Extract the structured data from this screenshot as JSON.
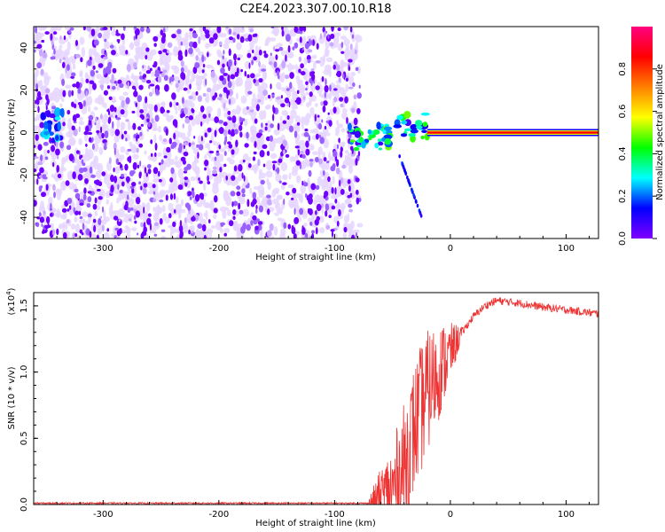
{
  "title": "C2E4.2023.307.00.10.R18",
  "colors": {
    "spectrum_light": "#e6d6ff",
    "spectrum_dark": "#7000ff",
    "snr_line": "#ee3333",
    "colormap": [
      "#8000ff",
      "#0000ff",
      "#00ffff",
      "#00ff00",
      "#ffff00",
      "#ff8000",
      "#ff0000",
      "#ff0080"
    ]
  },
  "chart_data": [
    {
      "type": "heatmap",
      "name": "spectrogram",
      "xlabel": "Height of straight line (km)",
      "ylabel": "Frequency (Hz)",
      "xlim": [
        -360,
        128
      ],
      "ylim": [
        -50,
        50
      ],
      "xticks": [
        -300,
        -200,
        -100,
        0,
        100
      ],
      "xtick_labels": [
        "-300",
        "-200",
        "-100",
        "0",
        "100"
      ],
      "yticks": [
        -40,
        -20,
        0,
        20,
        40
      ],
      "ytick_labels": [
        "-40",
        "-20",
        "0",
        "20",
        "40"
      ],
      "noise_region_x": [
        -360,
        -78
      ],
      "strong_signal": {
        "x_start": -20,
        "x_end": 128,
        "freq": 0
      }
    },
    {
      "type": "line",
      "name": "snr",
      "xlabel": "Height of straight line (km)",
      "ylabel": "SNR (10 * v/v)",
      "yscale_label": "(x10",
      "yscale_exp": "4",
      "yscale_close": ")",
      "xlim": [
        -360,
        128
      ],
      "ylim": [
        0,
        1.6
      ],
      "xticks": [
        -300,
        -200,
        -100,
        0,
        100
      ],
      "xtick_labels": [
        "-300",
        "-200",
        "-100",
        "0",
        "100"
      ],
      "yticks": [
        0,
        0.5,
        1.0,
        1.5
      ],
      "ytick_labels": [
        "0.0",
        "0.5",
        "1.0",
        "1.5"
      ],
      "profile": {
        "x": [
          -360,
          -70,
          -50,
          -40,
          -30,
          -20,
          -10,
          0,
          10,
          20,
          30,
          40,
          60,
          80,
          100,
          128
        ],
        "y": [
          0.01,
          0.01,
          0.1,
          0.3,
          0.6,
          0.85,
          1.0,
          1.15,
          1.3,
          1.42,
          1.5,
          1.54,
          1.52,
          1.49,
          1.47,
          1.44
        ]
      }
    },
    {
      "type": "colorbar",
      "name": "colorbar",
      "label": "Normalized spectral amplitude",
      "ylim": [
        0,
        1
      ],
      "ticks": [
        0,
        0.2,
        0.4,
        0.6,
        0.8
      ],
      "tick_labels": [
        "0.0",
        "0.2",
        "0.4",
        "0.6",
        "0.8"
      ]
    }
  ]
}
